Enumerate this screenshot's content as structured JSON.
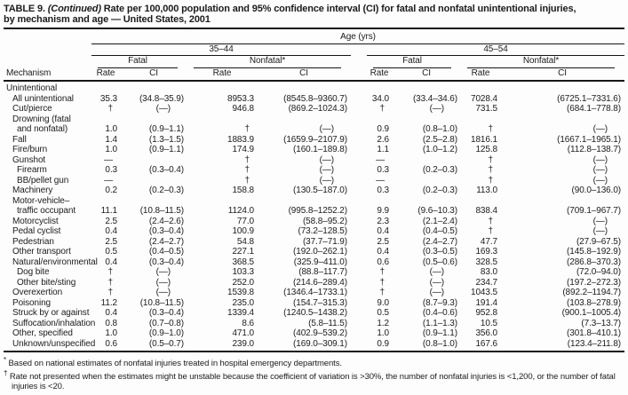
{
  "title": {
    "part_bold": "TABLE 9.",
    "part_italic": "(Continued)",
    "part_line1_rest": "Rate per 100,000 population and 95% confidence interval (CI) for fatal and nonfatal unintentional injuries,",
    "part_line2": "by mechanism and age — United States, 2001"
  },
  "table": {
    "span_header": "Age (yrs)",
    "age_groups": [
      "35–44",
      "45–54"
    ],
    "outcome_headers": [
      "Fatal",
      "Nonfatal*",
      "Fatal",
      "Nonfatal*"
    ],
    "mechanism_header": "Mechanism",
    "rate_header": "Rate",
    "ci_header": "CI",
    "section_label": "Unintentional",
    "rows": [
      {
        "label": "All unintentional",
        "indent": 1,
        "values": [
          "35.3",
          "(34.8–35.9)",
          "8953.3",
          "(8545.8–9360.7)",
          "34.0",
          "(33.4–34.6)",
          "7028.4",
          "(6725.1–7331.6)"
        ]
      },
      {
        "label": "Cut/pierce",
        "indent": 1,
        "values": [
          "†",
          "(—)",
          "946.8",
          "(869.2–1024.3)",
          "†",
          "(—)",
          "731.5",
          "(684.1–778.8)"
        ]
      },
      {
        "label": "Drowning (fatal",
        "label2": "and nonfatal)",
        "indent": 1,
        "values": [
          "1.0",
          "(0.9–1.1)",
          "†",
          "(—)",
          "0.9",
          "(0.8–1.0)",
          "†",
          "(—)"
        ]
      },
      {
        "label": "Fall",
        "indent": 1,
        "values": [
          "1.4",
          "(1.3–1.5)",
          "1883.9",
          "(1659.9–2107.9)",
          "2.6",
          "(2.5–2.8)",
          "1816.1",
          "(1667.1–1965.1)"
        ]
      },
      {
        "label": "Fire/burn",
        "indent": 1,
        "values": [
          "1.0",
          "(0.9–1.1)",
          "174.9",
          "(160.1–189.8)",
          "1.1",
          "(1.0–1.2)",
          "125.8",
          "(112.8–138.7)"
        ]
      },
      {
        "label": "Gunshot",
        "indent": 1,
        "values": [
          "—",
          "",
          "†",
          "(—)",
          "—",
          "",
          "†",
          "(—)"
        ]
      },
      {
        "label": "Firearm",
        "indent": 2,
        "values": [
          "0.3",
          "(0.3–0.4)",
          "†",
          "(—)",
          "0.3",
          "(0.2–0.3)",
          "†",
          "(—)"
        ]
      },
      {
        "label": "BB/pellet gun",
        "indent": 2,
        "values": [
          "—",
          "",
          "†",
          "(—)",
          "—",
          "",
          "†",
          "(—)"
        ]
      },
      {
        "label": "Machinery",
        "indent": 1,
        "values": [
          "0.2",
          "(0.2–0.3)",
          "158.8",
          "(130.5–187.0)",
          "0.3",
          "(0.2–0.3)",
          "113.0",
          "(90.0–136.0)"
        ]
      },
      {
        "label": "Motor-vehicle–",
        "label2": "traffic occupant",
        "indent": 1,
        "values": [
          "11.1",
          "(10.8–11.5)",
          "1124.0",
          "(995.8–1252.2)",
          "9.9",
          "(9.6–10.3)",
          "838.4",
          "(709.1–967.7)"
        ]
      },
      {
        "label": "Motorcyclist",
        "indent": 1,
        "values": [
          "2.5",
          "(2.4–2.6)",
          "77.0",
          "(58.8–95.2)",
          "2.3",
          "(2.1–2.4)",
          "†",
          "(—)"
        ]
      },
      {
        "label": "Pedal cyclist",
        "indent": 1,
        "values": [
          "0.4",
          "(0.3–0.4)",
          "100.9",
          "(73.2–128.5)",
          "0.4",
          "(0.4–0.5)",
          "†",
          "(—)"
        ]
      },
      {
        "label": "Pedestrian",
        "indent": 1,
        "values": [
          "2.5",
          "(2.4–2.7)",
          "54.8",
          "(37.7–71.9)",
          "2.5",
          "(2.4–2.7)",
          "47.7",
          "(27.9–67.5)"
        ]
      },
      {
        "label": "Other transport",
        "indent": 1,
        "values": [
          "0.5",
          "(0.4–0.5)",
          "227.1",
          "(192.0–262.1)",
          "0.4",
          "(0.3–0.5)",
          "169.3",
          "(145.8–192.9)"
        ]
      },
      {
        "label": "Natural/environmental",
        "indent": 1,
        "values": [
          "0.4",
          "(0.3–0.4)",
          "368.5",
          "(325.9–411.0)",
          "0.6",
          "(0.5–0.6)",
          "328.5",
          "(286.8–370.3)"
        ]
      },
      {
        "label": "Dog bite",
        "indent": 2,
        "values": [
          "†",
          "(—)",
          "103.3",
          "(88.8–117.7)",
          "†",
          "(—)",
          "83.0",
          "(72.0–94.0)"
        ]
      },
      {
        "label": "Other bite/sting",
        "indent": 2,
        "values": [
          "†",
          "(—)",
          "252.0",
          "(214.6–289.4)",
          "†",
          "(—)",
          "234.7",
          "(197.2–272.3)"
        ]
      },
      {
        "label": "Overexertion",
        "indent": 1,
        "values": [
          "†",
          "(—)",
          "1539.8",
          "(1346.4–1733.1)",
          "†",
          "(—)",
          "1043.5",
          "(892.2–1194.7)"
        ]
      },
      {
        "label": "Poisoning",
        "indent": 1,
        "values": [
          "11.2",
          "(10.8–11.5)",
          "235.0",
          "(154.7–315.3)",
          "9.0",
          "(8.7–9.3)",
          "191.4",
          "(103.8–278.9)"
        ]
      },
      {
        "label": "Struck by or against",
        "indent": 1,
        "values": [
          "0.4",
          "(0.3–0.4)",
          "1339.4",
          "(1240.5–1438.2)",
          "0.5",
          "(0.4–0.6)",
          "952.8",
          "(900.1–1005.4)"
        ]
      },
      {
        "label": "Suffocation/inhalation",
        "indent": 1,
        "values": [
          "0.8",
          "(0.7–0.8)",
          "8.6",
          "(5.8–11.5)",
          "1.2",
          "(1.1–1.3)",
          "10.5",
          "(7.3–13.7)"
        ]
      },
      {
        "label": "Other, specified",
        "indent": 1,
        "values": [
          "1.0",
          "(0.9–1.0)",
          "471.0",
          "(402.9–539.2)",
          "1.0",
          "(0.9–1.1)",
          "356.0",
          "(301.8–410.1)"
        ]
      },
      {
        "label": "Unknown/unspecified",
        "indent": 1,
        "values": [
          "0.6",
          "(0.5–0.7)",
          "239.0",
          "(169.0–309.1)",
          "0.9",
          "(0.8–1.0)",
          "167.6",
          "(123.4–211.8)"
        ]
      }
    ],
    "footnotes": [
      {
        "marker": "*",
        "text": "Based on national estimates of nonfatal injuries treated in hospital emergency departments."
      },
      {
        "marker": "†",
        "text": "Rate not presented when the estimates might be unstable because the coefficient of variation is >30%, the number of nonfatal injuries is <1,200, or the number of fatal injuries is <20."
      }
    ]
  }
}
